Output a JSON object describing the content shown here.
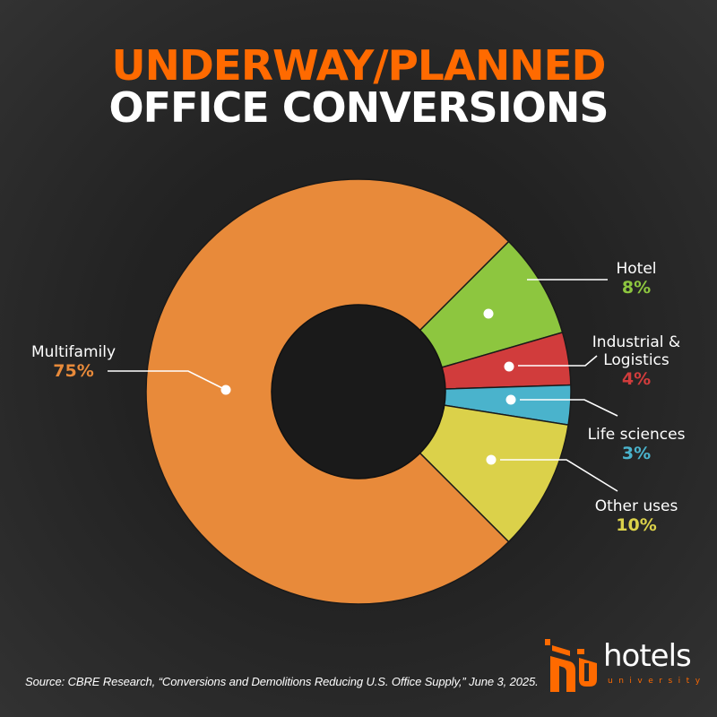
{
  "header": {
    "title_line1": "UNDERWAY/PLANNED",
    "title_line2": "OFFICE CONVERSIONS"
  },
  "colors": {
    "background": "#262626",
    "title_accent": "#ff6a00",
    "title_main": "#ffffff",
    "donut_hole": "#1a1a1a",
    "multifamily": "#e88a3a",
    "hotel": "#8dc63f",
    "industrial": "#d13c3c",
    "life_sciences": "#4ab3cc",
    "other_uses": "#dbd14a"
  },
  "chart_data": {
    "type": "pie",
    "subtype": "donut",
    "title": "Underway/Planned Office Conversions",
    "categories": [
      "Multifamily",
      "Hotel",
      "Industrial & Logistics",
      "Life sciences",
      "Other uses"
    ],
    "values": [
      75,
      8,
      4,
      3,
      10
    ],
    "unit": "%",
    "colors": [
      "#e88a3a",
      "#8dc63f",
      "#d13c3c",
      "#4ab3cc",
      "#dbd14a"
    ],
    "legend": "inline labels with leader lines"
  },
  "labels": {
    "multifamily": {
      "name": "Multifamily",
      "pct": "75%"
    },
    "hotel": {
      "name": "Hotel",
      "pct": "8%"
    },
    "industrial": {
      "name_line1": "Industrial &",
      "name_line2": "Logistics",
      "pct": "4%"
    },
    "life_sciences": {
      "name": "Life sciences",
      "pct": "3%"
    },
    "other_uses": {
      "name": "Other uses",
      "pct": "10%"
    }
  },
  "footer": {
    "source": "Source: CBRE Research, “Conversions and Demolitions Reducing U.S. Office Supply,” June 3, 2025.",
    "logo_text": "hotels",
    "logo_subtext": "university"
  }
}
